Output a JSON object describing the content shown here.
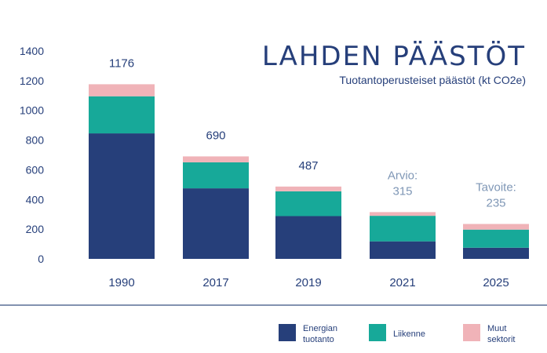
{
  "chart_data": {
    "type": "bar",
    "stacked": true,
    "title": "LAHDEN PÄÄSTÖT",
    "subtitle": "Tuotantoperusteiset päästöt  (kt CO2e)",
    "categories": [
      "1990",
      "2017",
      "2019",
      "2021",
      "2025"
    ],
    "series": [
      {
        "name": "Energian tuotanto",
        "color": "#263f7a",
        "values": [
          845,
          475,
          288,
          118,
          75
        ]
      },
      {
        "name": "Liikenne",
        "color": "#17a999",
        "values": [
          250,
          175,
          167,
          172,
          122
        ]
      },
      {
        "name": "Muut sektorit",
        "color": "#f0b3b8",
        "values": [
          81,
          40,
          32,
          25,
          38
        ]
      }
    ],
    "legend_labels": [
      [
        "Energian",
        "tuotanto"
      ],
      [
        "Liikenne"
      ],
      [
        "Muut",
        "sektorit"
      ]
    ],
    "total_labels": [
      {
        "lines": [
          "1176"
        ],
        "color": "#263f7a"
      },
      {
        "lines": [
          "690"
        ],
        "color": "#263f7a"
      },
      {
        "lines": [
          "487"
        ],
        "color": "#263f7a"
      },
      {
        "lines": [
          "Arvio:",
          "315"
        ],
        "color": "#7f97b6"
      },
      {
        "lines": [
          "Tavoite:",
          "235"
        ],
        "color": "#7f97b6"
      }
    ],
    "yticks": [
      0,
      200,
      400,
      600,
      800,
      1000,
      1200,
      1400
    ],
    "ylim": [
      0,
      1400
    ],
    "grid": false,
    "legend_position": "bottom",
    "accent_color": "#263f7a"
  }
}
